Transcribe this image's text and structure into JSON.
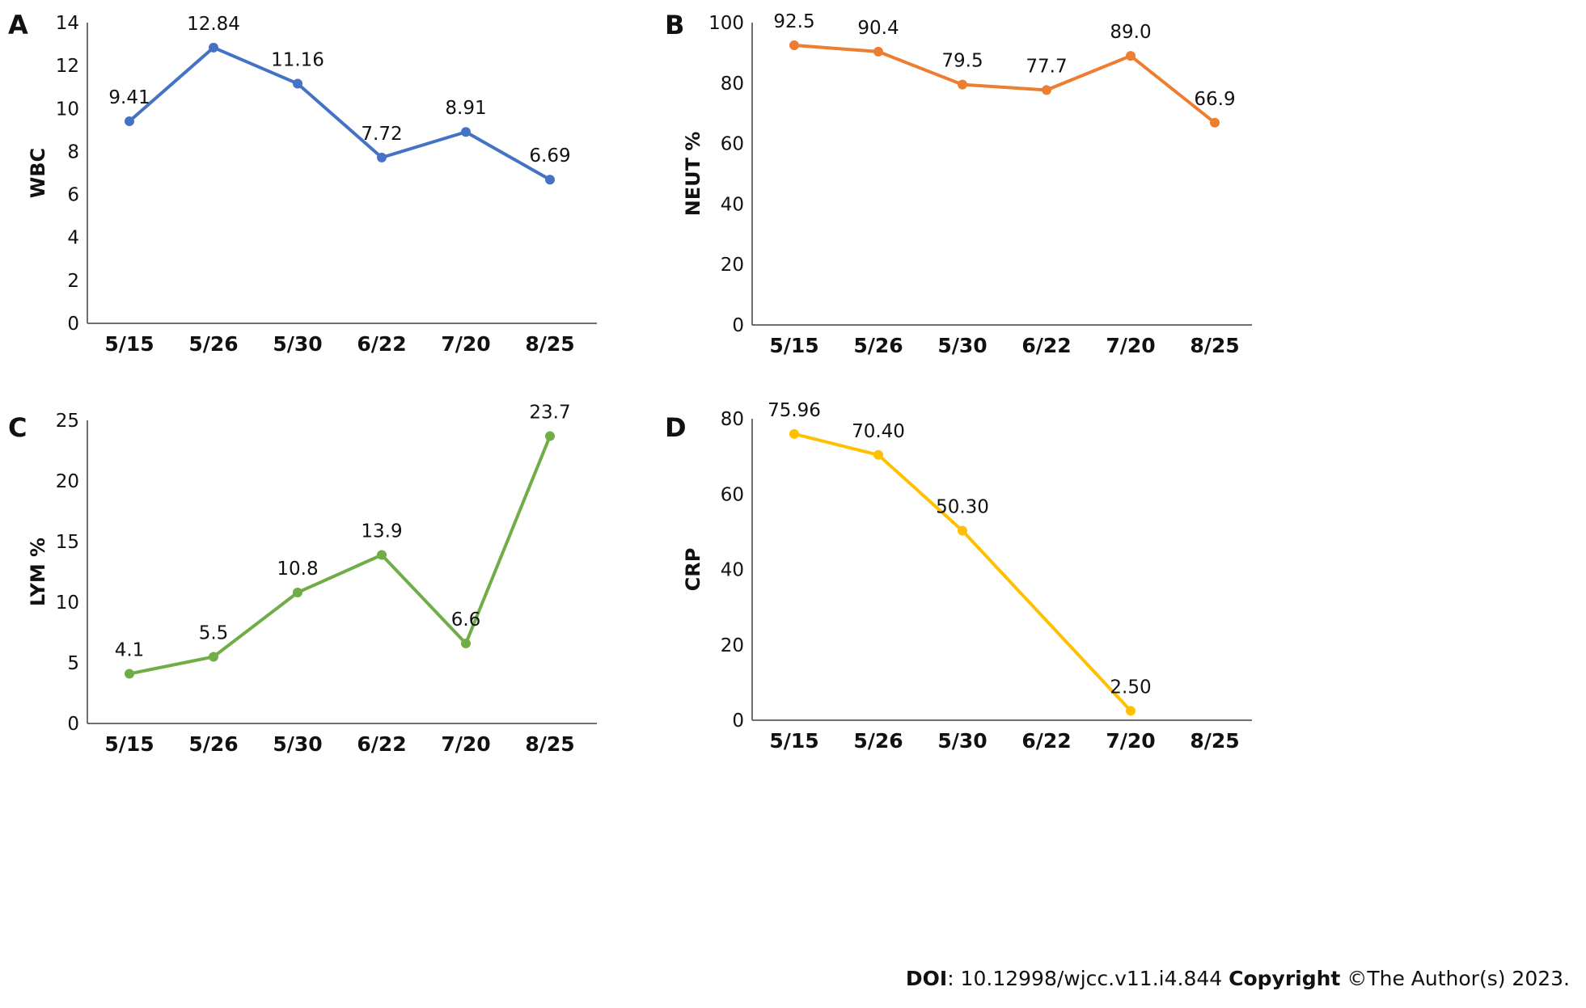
{
  "chart_data": [
    {
      "panel": "A",
      "type": "line",
      "categories": [
        "5/15",
        "5/26",
        "5/30",
        "6/22",
        "7/20",
        "8/25"
      ],
      "series": [
        {
          "values": [
            9.41,
            12.84,
            11.16,
            7.72,
            8.91,
            6.69
          ]
        }
      ],
      "value_labels": [
        "9.41",
        "12.84",
        "11.16",
        "7.72",
        "8.91",
        "6.69"
      ],
      "ylabel": "WBC",
      "xlabel": "",
      "ylim": [
        0,
        14
      ],
      "yticks": [
        0,
        2,
        4,
        6,
        8,
        10,
        12,
        14
      ],
      "color": "#4472C4",
      "grid": false
    },
    {
      "panel": "B",
      "type": "line",
      "categories": [
        "5/15",
        "5/26",
        "5/30",
        "6/22",
        "7/20",
        "8/25"
      ],
      "series": [
        {
          "values": [
            92.5,
            90.4,
            79.5,
            77.7,
            89.0,
            66.9
          ]
        }
      ],
      "value_labels": [
        "92.5",
        "90.4",
        "79.5",
        "77.7",
        "89.0",
        "66.9"
      ],
      "ylabel": "NEUT %",
      "xlabel": "",
      "ylim": [
        0,
        100
      ],
      "yticks": [
        0,
        20,
        40,
        60,
        80,
        100
      ],
      "color": "#ED7D31",
      "grid": false
    },
    {
      "panel": "C",
      "type": "line",
      "categories": [
        "5/15",
        "5/26",
        "5/30",
        "6/22",
        "7/20",
        "8/25"
      ],
      "series": [
        {
          "values": [
            4.1,
            5.5,
            10.8,
            13.9,
            6.6,
            23.7
          ]
        }
      ],
      "value_labels": [
        "4.1",
        "5.5",
        "10.8",
        "13.9",
        "6.6",
        "23.7"
      ],
      "ylabel": "LYM %",
      "xlabel": "",
      "ylim": [
        0,
        25
      ],
      "yticks": [
        0,
        5,
        10,
        15,
        20,
        25
      ],
      "color": "#70AD47",
      "grid": false
    },
    {
      "panel": "D",
      "type": "line",
      "categories": [
        "5/15",
        "5/26",
        "5/30",
        "6/22",
        "7/20",
        "8/25"
      ],
      "series": [
        {
          "values": [
            75.96,
            70.4,
            50.3,
            null,
            2.5,
            null
          ]
        }
      ],
      "value_labels": [
        "75.96",
        "70.40",
        "50.30",
        null,
        "2.50",
        null
      ],
      "ylabel": "CRP",
      "xlabel": "",
      "ylim": [
        0,
        80
      ],
      "yticks": [
        0,
        20,
        40,
        60,
        80
      ],
      "color": "#FFC000",
      "grid": false
    }
  ],
  "footer": {
    "doi_label": "DOI",
    "doi_value": ": 10.12998/wjcc.v11.i4.844 ",
    "copyright_label": "Copyright",
    "copyright_value": " ©The Author(s) 2023."
  }
}
